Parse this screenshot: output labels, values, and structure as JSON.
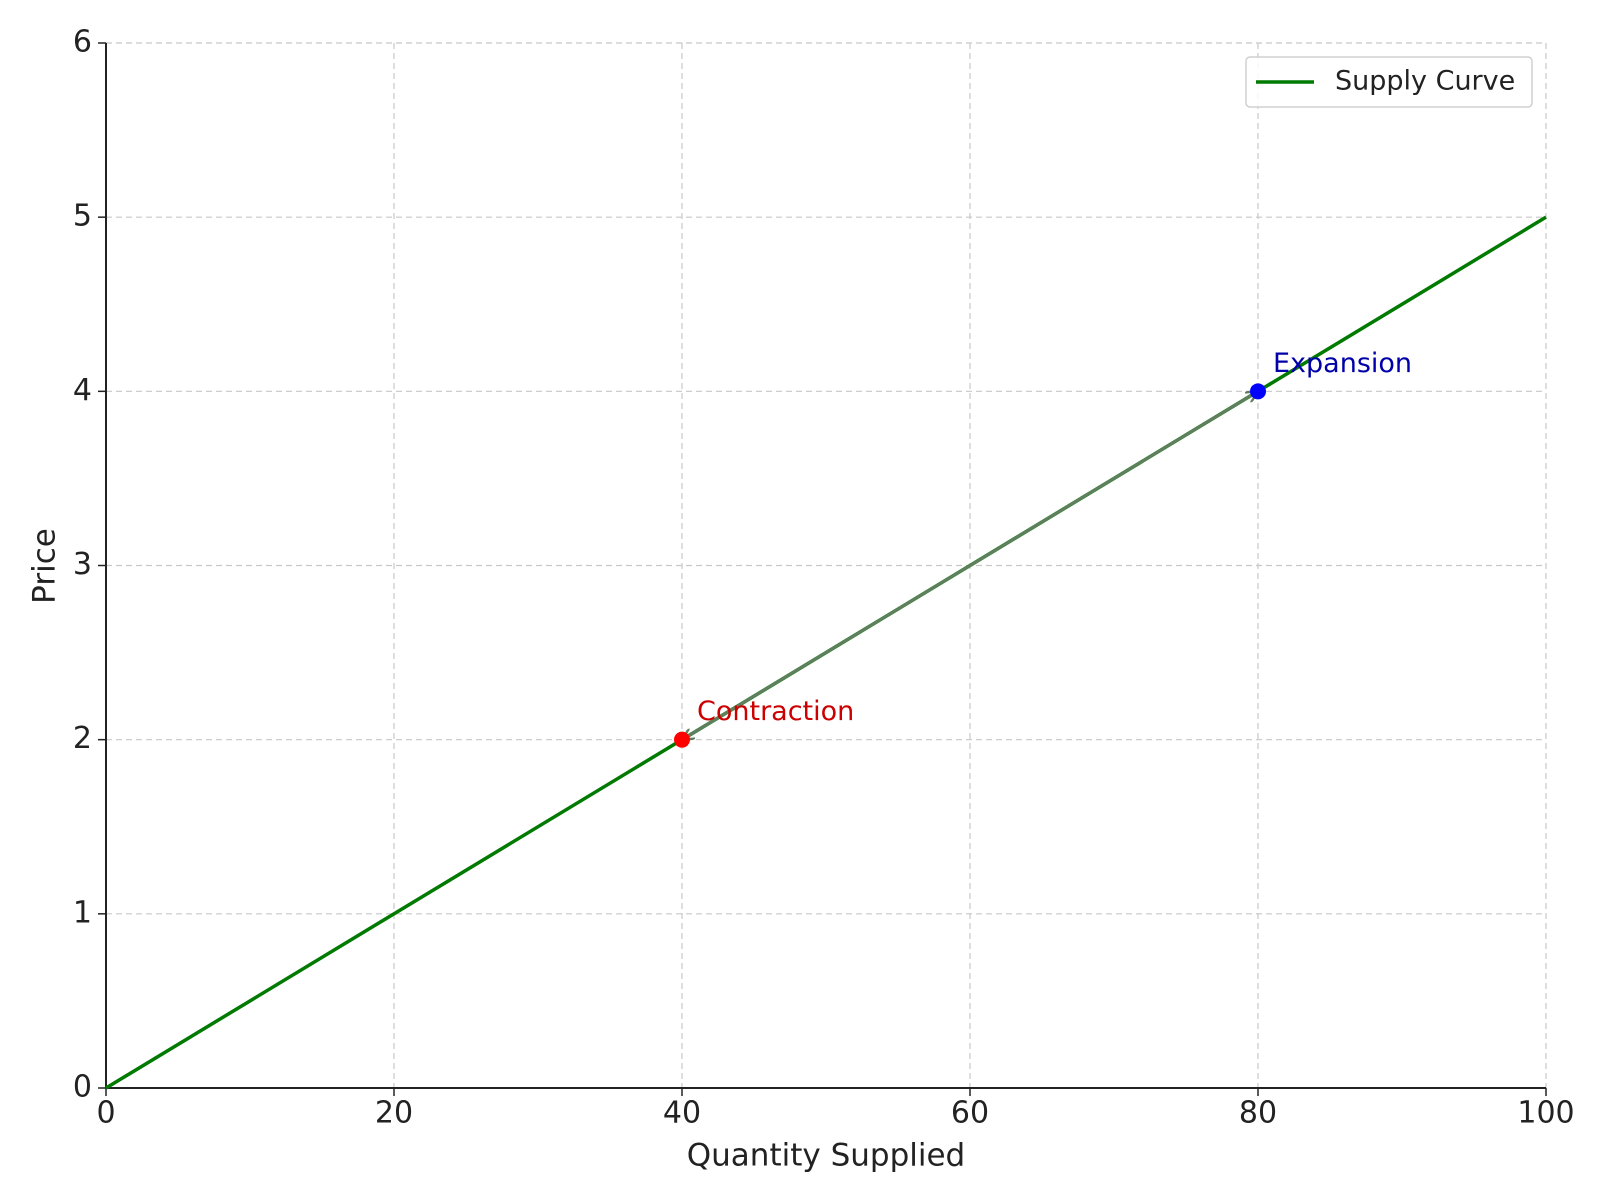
{
  "chart_data": {
    "type": "line",
    "xlabel": "Quantity Supplied",
    "ylabel": "Price",
    "x": [
      0,
      100
    ],
    "series": [
      {
        "name": "Supply Curve",
        "color": "#007a00",
        "values": [
          0,
          5
        ]
      }
    ],
    "annotations": [
      {
        "label": "Contraction",
        "x": 40,
        "y": 2,
        "color": "#ff0000",
        "text_color": "#cc0000"
      },
      {
        "label": "Expansion",
        "x": 80,
        "y": 4,
        "color": "#0000ff",
        "text_color": "#0000aa"
      }
    ],
    "arrow_color": "#5f7f5f",
    "xlim": [
      0,
      100
    ],
    "xticks": [
      0,
      20,
      40,
      60,
      80,
      100
    ],
    "ylim": [
      0,
      6
    ],
    "yticks": [
      0,
      1,
      2,
      3,
      4,
      5,
      6
    ],
    "grid": true,
    "legend": "upper right"
  }
}
